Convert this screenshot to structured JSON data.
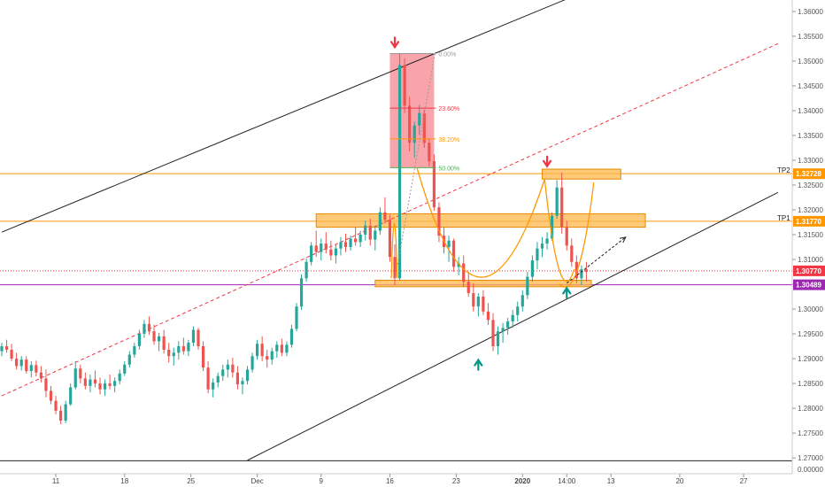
{
  "chart_data": {
    "type": "candlestick",
    "instrument_axis": {
      "y_ticks": [
        "1.36000",
        "1.35500",
        "1.35000",
        "1.34500",
        "1.34000",
        "1.33500",
        "1.33000",
        "1.32500",
        "1.32000",
        "1.31500",
        "1.31000",
        "1.30500",
        "1.30000",
        "1.29500",
        "1.29000",
        "1.28500",
        "1.28000",
        "1.27500",
        "1.27000"
      ],
      "y_tick_values": [
        1.36,
        1.355,
        1.35,
        1.345,
        1.34,
        1.335,
        1.33,
        1.325,
        1.32,
        1.315,
        1.31,
        1.305,
        1.3,
        1.295,
        1.29,
        1.285,
        1.28,
        1.275,
        1.27
      ],
      "bottom_tick": "0.00000",
      "ylim": [
        1.2668,
        1.3623
      ],
      "x_ticks": [
        "11",
        "18",
        "25",
        "Dec",
        "9",
        "16",
        "23",
        "2020",
        "14:00",
        "13",
        "20",
        "27"
      ],
      "x_tick_bars": [
        11,
        25,
        38.5,
        52,
        65,
        79,
        92.5,
        106,
        115,
        124,
        138,
        151
      ],
      "bar_count": 158
    },
    "price_tags": [
      {
        "label": "TP2",
        "value": "1.32728",
        "price": 1.32728,
        "color": "#ff9800"
      },
      {
        "label": "TP1",
        "value": "1.31770",
        "price": 1.3177,
        "color": "#ff9800"
      },
      {
        "label": "",
        "value": "1.30770",
        "price": 1.3077,
        "color": "#f23645"
      },
      {
        "label": "",
        "value": "1.30489",
        "price": 1.30489,
        "color": "#9c27b0"
      }
    ],
    "fib_levels": [
      {
        "label": "0.00%",
        "price": 1.3515,
        "color": "#999999"
      },
      {
        "label": "23.60%",
        "price": 1.3405,
        "color": "#f23645"
      },
      {
        "label": "38.20%",
        "price": 1.3343,
        "color": "#ff9800"
      },
      {
        "label": "50.00%",
        "price": 1.3285,
        "color": "#4caf50"
      }
    ],
    "candles": [
      [
        1.2915,
        1.2932,
        1.2905,
        1.2925
      ],
      [
        1.2925,
        1.2938,
        1.2912,
        1.2918
      ],
      [
        1.2918,
        1.293,
        1.2895,
        1.29
      ],
      [
        1.29,
        1.2912,
        1.2878,
        1.2885
      ],
      [
        1.2885,
        1.2905,
        1.2876,
        1.2898
      ],
      [
        1.2898,
        1.2905,
        1.287,
        1.2875
      ],
      [
        1.2875,
        1.2895,
        1.2862,
        1.2887
      ],
      [
        1.2887,
        1.2896,
        1.2864,
        1.2872
      ],
      [
        1.2872,
        1.2885,
        1.2852,
        1.286
      ],
      [
        1.286,
        1.2878,
        1.2822,
        1.2835
      ],
      [
        1.2835,
        1.2845,
        1.2808,
        1.2815
      ],
      [
        1.2815,
        1.2825,
        1.2788,
        1.2795
      ],
      [
        1.2795,
        1.2805,
        1.2768,
        1.2775
      ],
      [
        1.2775,
        1.2815,
        1.277,
        1.2808
      ],
      [
        1.2808,
        1.285,
        1.2805,
        1.2842
      ],
      [
        1.2842,
        1.2895,
        1.2838,
        1.288
      ],
      [
        1.288,
        1.2888,
        1.285,
        1.286
      ],
      [
        1.286,
        1.2872,
        1.2838,
        1.2845
      ],
      [
        1.2845,
        1.2868,
        1.2832,
        1.2858
      ],
      [
        1.2858,
        1.2876,
        1.2842,
        1.285
      ],
      [
        1.285,
        1.2862,
        1.2828,
        1.2838
      ],
      [
        1.2838,
        1.2858,
        1.2825,
        1.285
      ],
      [
        1.285,
        1.2868,
        1.2838,
        1.2845
      ],
      [
        1.2845,
        1.2862,
        1.2832,
        1.2855
      ],
      [
        1.2855,
        1.2878,
        1.2848,
        1.287
      ],
      [
        1.287,
        1.2895,
        1.2865,
        1.2888
      ],
      [
        1.2888,
        1.2915,
        1.2882,
        1.2908
      ],
      [
        1.2908,
        1.2932,
        1.2902,
        1.2925
      ],
      [
        1.2925,
        1.2958,
        1.2918,
        1.295
      ],
      [
        1.295,
        1.2978,
        1.2942,
        1.297
      ],
      [
        1.297,
        1.2985,
        1.2948,
        1.2955
      ],
      [
        1.2955,
        1.2968,
        1.2928,
        1.2935
      ],
      [
        1.2935,
        1.2952,
        1.2915,
        1.2945
      ],
      [
        1.2945,
        1.2958,
        1.291,
        1.2918
      ],
      [
        1.2918,
        1.2932,
        1.2892,
        1.2905
      ],
      [
        1.2905,
        1.2922,
        1.2886,
        1.2912
      ],
      [
        1.2912,
        1.2935,
        1.2898,
        1.2925
      ],
      [
        1.2925,
        1.2942,
        1.2908,
        1.2915
      ],
      [
        1.2915,
        1.2938,
        1.2905,
        1.2932
      ],
      [
        1.2932,
        1.2965,
        1.2925,
        1.2958
      ],
      [
        1.2958,
        1.2962,
        1.2918,
        1.2925
      ],
      [
        1.2925,
        1.2935,
        1.2875,
        1.2882
      ],
      [
        1.2882,
        1.2895,
        1.283,
        1.2838
      ],
      [
        1.2838,
        1.286,
        1.2822,
        1.2852
      ],
      [
        1.2852,
        1.2872,
        1.2842,
        1.2865
      ],
      [
        1.2865,
        1.2888,
        1.2855,
        1.2878
      ],
      [
        1.2878,
        1.2898,
        1.2862,
        1.2888
      ],
      [
        1.2888,
        1.2902,
        1.2862,
        1.2872
      ],
      [
        1.2872,
        1.2885,
        1.2838,
        1.2848
      ],
      [
        1.2848,
        1.2862,
        1.2828,
        1.2855
      ],
      [
        1.2855,
        1.2885,
        1.2848,
        1.2878
      ],
      [
        1.2878,
        1.2912,
        1.2872,
        1.2905
      ],
      [
        1.2905,
        1.2938,
        1.2898,
        1.293
      ],
      [
        1.293,
        1.2945,
        1.2895,
        1.2905
      ],
      [
        1.2905,
        1.2918,
        1.2882,
        1.2898
      ],
      [
        1.2898,
        1.2922,
        1.2888,
        1.2915
      ],
      [
        1.2915,
        1.2935,
        1.2902,
        1.2928
      ],
      [
        1.2928,
        1.294,
        1.2905,
        1.2912
      ],
      [
        1.2912,
        1.2935,
        1.2905,
        1.2928
      ],
      [
        1.2928,
        1.2968,
        1.2922,
        1.296
      ],
      [
        1.296,
        1.3012,
        1.2955,
        1.3005
      ],
      [
        1.3005,
        1.307,
        1.2998,
        1.3062
      ],
      [
        1.3062,
        1.3102,
        1.3055,
        1.3095
      ],
      [
        1.3095,
        1.3135,
        1.3088,
        1.3128
      ],
      [
        1.3128,
        1.3158,
        1.3105,
        1.3115
      ],
      [
        1.3115,
        1.3142,
        1.3098,
        1.3132
      ],
      [
        1.3132,
        1.3155,
        1.3112,
        1.312
      ],
      [
        1.312,
        1.3138,
        1.3098,
        1.3108
      ],
      [
        1.3108,
        1.313,
        1.3092,
        1.3122
      ],
      [
        1.3122,
        1.3145,
        1.3108,
        1.3135
      ],
      [
        1.3135,
        1.3152,
        1.3115,
        1.3125
      ],
      [
        1.3125,
        1.3148,
        1.3118,
        1.3142
      ],
      [
        1.3142,
        1.3165,
        1.3128,
        1.3135
      ],
      [
        1.3135,
        1.3158,
        1.3125,
        1.315
      ],
      [
        1.315,
        1.3178,
        1.3138,
        1.3168
      ],
      [
        1.3168,
        1.3182,
        1.3128,
        1.314
      ],
      [
        1.314,
        1.3168,
        1.3118,
        1.3158
      ],
      [
        1.3158,
        1.3205,
        1.315,
        1.3195
      ],
      [
        1.3195,
        1.3225,
        1.3172,
        1.318
      ],
      [
        1.318,
        1.319,
        1.3095,
        1.3105
      ],
      [
        1.3105,
        1.313,
        1.3048,
        1.3062
      ],
      [
        1.3062,
        1.3515,
        1.3058,
        1.3492
      ],
      [
        1.3492,
        1.3505,
        1.3395,
        1.341
      ],
      [
        1.341,
        1.3428,
        1.3318,
        1.3335
      ],
      [
        1.3335,
        1.3378,
        1.3305,
        1.337
      ],
      [
        1.337,
        1.3412,
        1.3352,
        1.3395
      ],
      [
        1.3395,
        1.3402,
        1.3325,
        1.3335
      ],
      [
        1.3335,
        1.3345,
        1.3288,
        1.3298
      ],
      [
        1.3298,
        1.3312,
        1.3198,
        1.3205
      ],
      [
        1.3205,
        1.3215,
        1.3135,
        1.3148
      ],
      [
        1.3148,
        1.3165,
        1.3112,
        1.3125
      ],
      [
        1.3125,
        1.3148,
        1.3095,
        1.3138
      ],
      [
        1.3138,
        1.3142,
        1.3075,
        1.3085
      ],
      [
        1.3085,
        1.3105,
        1.3068,
        1.3092
      ],
      [
        1.3092,
        1.3108,
        1.3045,
        1.3055
      ],
      [
        1.3055,
        1.3075,
        1.3025,
        1.3032
      ],
      [
        1.3032,
        1.3052,
        1.2995,
        1.3005
      ],
      [
        1.3005,
        1.3032,
        1.2985,
        1.3025
      ],
      [
        1.3025,
        1.3038,
        1.2988,
        1.2995
      ],
      [
        1.2995,
        1.3012,
        1.2968,
        1.2978
      ],
      [
        1.2978,
        1.2992,
        1.2915,
        1.2925
      ],
      [
        1.2925,
        1.2965,
        1.2908,
        1.2955
      ],
      [
        1.2955,
        1.2972,
        1.2932,
        1.2962
      ],
      [
        1.2962,
        1.2982,
        1.2948,
        1.2975
      ],
      [
        1.2975,
        1.2998,
        1.2962,
        1.2988
      ],
      [
        1.2988,
        1.3015,
        1.2975,
        1.3005
      ],
      [
        1.3005,
        1.3038,
        1.2995,
        1.3028
      ],
      [
        1.3028,
        1.3075,
        1.302,
        1.3065
      ],
      [
        1.3065,
        1.3108,
        1.3055,
        1.3098
      ],
      [
        1.3098,
        1.3135,
        1.308,
        1.3122
      ],
      [
        1.3122,
        1.3145,
        1.3105,
        1.3132
      ],
      [
        1.3132,
        1.3155,
        1.312,
        1.3142
      ],
      [
        1.3142,
        1.3195,
        1.3138,
        1.3188
      ],
      [
        1.3188,
        1.326,
        1.3182,
        1.3245
      ],
      [
        1.3245,
        1.3275,
        1.3152,
        1.3165
      ],
      [
        1.3165,
        1.3178,
        1.3118,
        1.3128
      ],
      [
        1.3128,
        1.3142,
        1.3085,
        1.3095
      ],
      [
        1.3095,
        1.3108,
        1.3052,
        1.3062
      ],
      [
        1.3062,
        1.3088,
        1.3048,
        1.308
      ],
      [
        1.308,
        1.3095,
        1.3055,
        1.3075
      ]
    ],
    "channel_upper": [
      [
        0,
        1.3155
      ],
      [
        115,
        1.3625
      ]
    ],
    "channel_lower": [
      [
        50,
        1.2695
      ],
      [
        158,
        1.3235
      ]
    ],
    "channel_mid": [
      [
        0,
        1.2825
      ],
      [
        158,
        1.3535
      ]
    ],
    "trend_arrow": [
      [
        115,
        1.3052
      ],
      [
        127,
        1.3145
      ]
    ],
    "zones": [
      {
        "from_bar": 64,
        "to_bar": 131,
        "low": 1.3165,
        "high": 1.3192
      },
      {
        "from_bar": 110,
        "to_bar": 126,
        "low": 1.3262,
        "high": 1.3282
      },
      {
        "from_bar": 76,
        "to_bar": 120,
        "low": 1.3045,
        "high": 1.3058
      }
    ],
    "fib_box": {
      "from_bar": 79,
      "to_bar": 88,
      "high": 1.3515,
      "low": 1.3285
    },
    "hline_bottom": 1.2694,
    "arrows_down": [
      [
        80,
        1.3535
      ],
      [
        111,
        1.3295
      ]
    ],
    "arrows_up": [
      [
        97,
        1.289
      ],
      [
        115,
        1.3035
      ]
    ]
  }
}
